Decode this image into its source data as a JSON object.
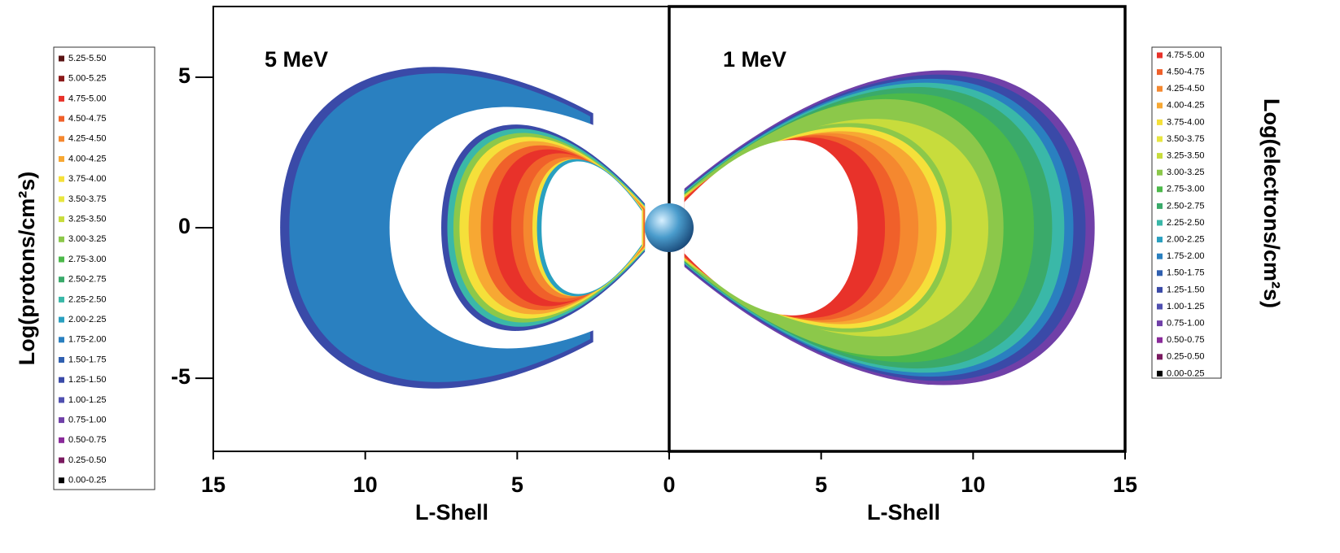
{
  "chart_data": [
    {
      "type": "contour",
      "title": "5 MeV",
      "x_label": "L-Shell",
      "y_label": "Log(protons/cm²s)",
      "xlim": [
        15,
        0
      ],
      "xticks": [
        15,
        10,
        5,
        0
      ],
      "ylim": [
        -7.43,
        7.35
      ],
      "yticks": [
        5,
        0,
        -5
      ],
      "legend": [
        {
          "label": "5.25-5.50",
          "color": "#5a1414"
        },
        {
          "label": "5.00-5.25",
          "color": "#8b1a1a"
        },
        {
          "label": "4.75-5.00",
          "color": "#e8322a"
        },
        {
          "label": "4.50-4.75",
          "color": "#f0602a"
        },
        {
          "label": "4.25-4.50",
          "color": "#f5882f"
        },
        {
          "label": "4.00-4.25",
          "color": "#f7a833"
        },
        {
          "label": "3.75-4.00",
          "color": "#f5e03a"
        },
        {
          "label": "3.50-3.75",
          "color": "#e8e640"
        },
        {
          "label": "3.25-3.50",
          "color": "#c8dc3c"
        },
        {
          "label": "3.00-3.25",
          "color": "#8cc84a"
        },
        {
          "label": "2.75-3.00",
          "color": "#4cb94a"
        },
        {
          "label": "2.50-2.75",
          "color": "#3aaa6a"
        },
        {
          "label": "2.25-2.50",
          "color": "#3ab8a8"
        },
        {
          "label": "2.00-2.25",
          "color": "#2aa0c0"
        },
        {
          "label": "1.75-2.00",
          "color": "#2a80c0"
        },
        {
          "label": "1.50-1.75",
          "color": "#3060b0"
        },
        {
          "label": "1.25-1.50",
          "color": "#3a4aa8"
        },
        {
          "label": "1.00-1.25",
          "color": "#5050b0"
        },
        {
          "label": "0.75-1.00",
          "color": "#7040a8"
        },
        {
          "label": "0.50-0.75",
          "color": "#8a2a9a"
        },
        {
          "label": "0.25-0.50",
          "color": "#7a1a60"
        },
        {
          "label": "0.00-0.25",
          "color": "#000000"
        }
      ]
    },
    {
      "type": "contour",
      "title": "1 MeV",
      "x_label": "L-Shell",
      "y_label": "Log(electrons/cm²s)",
      "xlim": [
        0,
        15
      ],
      "xticks": [
        5,
        10,
        15
      ],
      "ylim": [
        -7.43,
        7.35
      ],
      "legend": [
        {
          "label": "4.75-5.00",
          "color": "#e8322a"
        },
        {
          "label": "4.50-4.75",
          "color": "#f0602a"
        },
        {
          "label": "4.25-4.50",
          "color": "#f5882f"
        },
        {
          "label": "4.00-4.25",
          "color": "#f7a833"
        },
        {
          "label": "3.75-4.00",
          "color": "#f5e03a"
        },
        {
          "label": "3.50-3.75",
          "color": "#e8e640"
        },
        {
          "label": "3.25-3.50",
          "color": "#c8dc3c"
        },
        {
          "label": "3.00-3.25",
          "color": "#8cc84a"
        },
        {
          "label": "2.75-3.00",
          "color": "#4cb94a"
        },
        {
          "label": "2.50-2.75",
          "color": "#3aaa6a"
        },
        {
          "label": "2.25-2.50",
          "color": "#3ab8a8"
        },
        {
          "label": "2.00-2.25",
          "color": "#2aa0c0"
        },
        {
          "label": "1.75-2.00",
          "color": "#2a80c0"
        },
        {
          "label": "1.50-1.75",
          "color": "#3060b0"
        },
        {
          "label": "1.25-1.50",
          "color": "#3a4aa8"
        },
        {
          "label": "1.00-1.25",
          "color": "#5050b0"
        },
        {
          "label": "0.75-1.00",
          "color": "#7040a8"
        },
        {
          "label": "0.50-0.75",
          "color": "#8a2a9a"
        },
        {
          "label": "0.25-0.50",
          "color": "#7a1a60"
        },
        {
          "label": "0.00-0.25",
          "color": "#000000"
        }
      ]
    }
  ]
}
